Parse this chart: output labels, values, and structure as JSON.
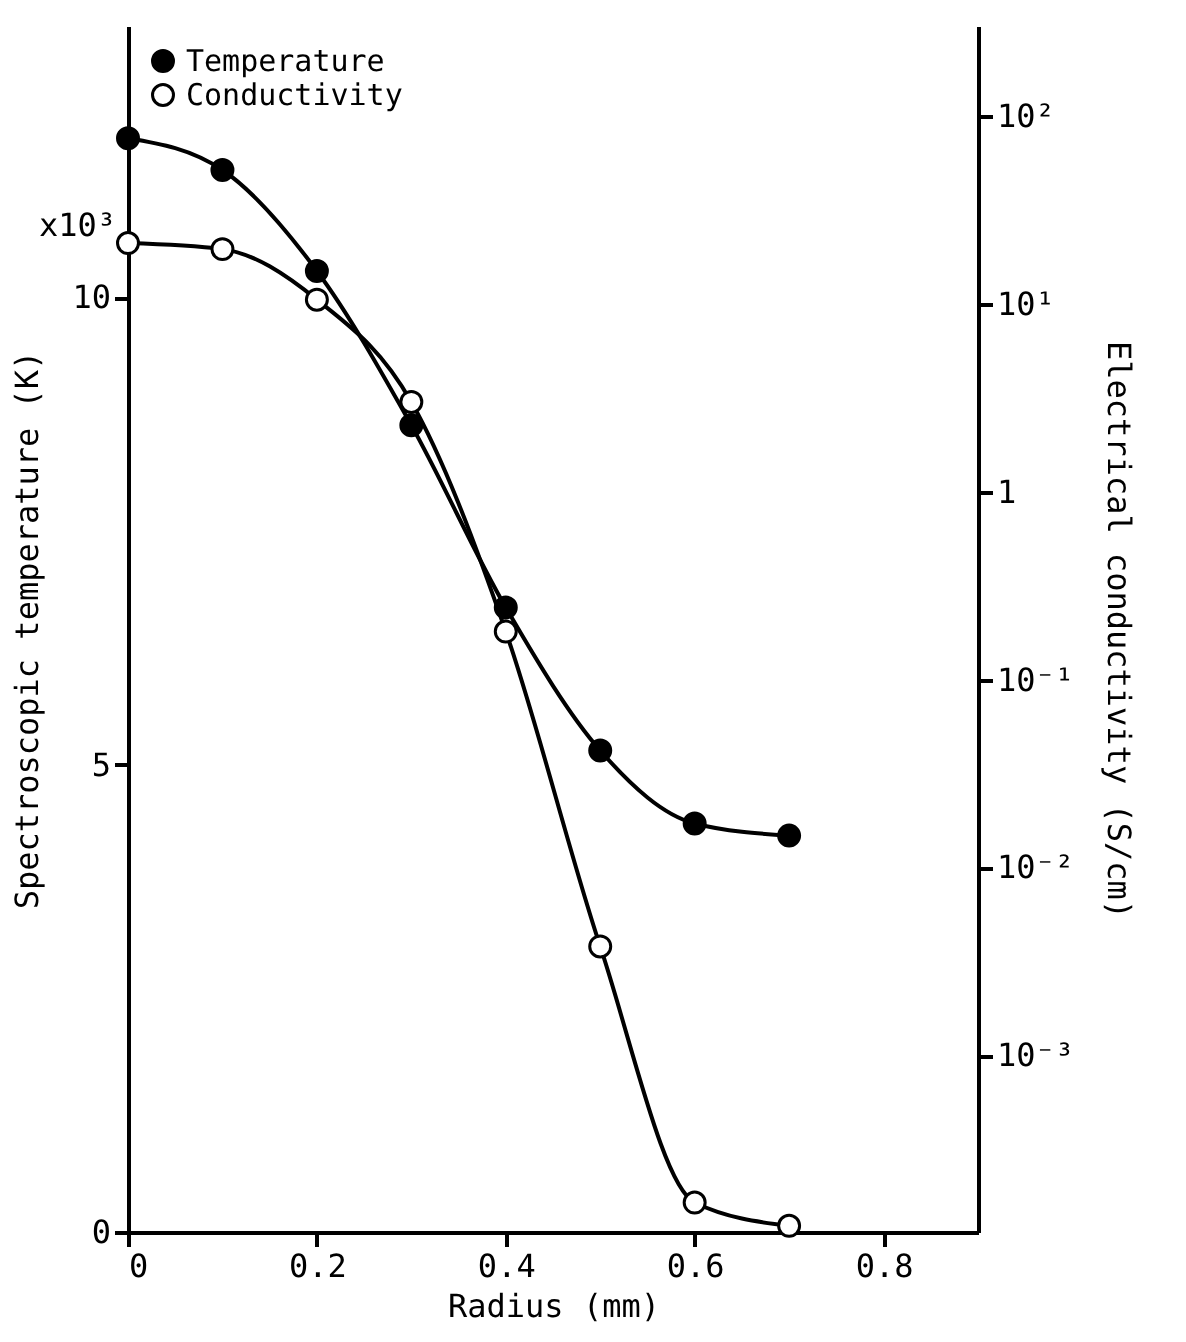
{
  "chart_data": {
    "type": "line",
    "xlabel": "Radius (mm)",
    "ylabel": "Spectroscopic temperature (K)",
    "y2label": "Electrical conductivity (S/cm)",
    "annotations": [
      "x10³"
    ],
    "x": [
      0,
      0.1,
      0.2,
      0.3,
      0.4,
      0.5,
      0.6,
      0.7
    ],
    "series": [
      {
        "name": "Temperature",
        "color": "#000000",
        "values": [
          11.7,
          11.36,
          10.28,
          8.63,
          6.68,
          5.15,
          4.37,
          4.24
        ]
      },
      {
        "name": "Conductivity",
        "color": "#000000",
        "axis": "y2",
        "values": [
          21,
          19.5,
          10.5,
          3.0,
          0.18,
          0.0038,
          0.000165,
          0.000124
        ]
      }
    ],
    "xlim": [
      0,
      0.9
    ],
    "xticks": [
      0,
      0.2,
      0.4,
      0.6,
      0.8
    ],
    "ylim": [
      0,
      12.9
    ],
    "yticks": [
      0,
      5,
      10
    ],
    "y2lim": [
      0.000115,
      300
    ],
    "y2ticks": [
      {
        "value": 100,
        "label": "10²"
      },
      {
        "value": 10,
        "label": "10¹"
      },
      1,
      {
        "value": 0.1,
        "label": "10⁻¹"
      },
      {
        "value": 0.01,
        "label": "10⁻²"
      },
      {
        "value": 0.001,
        "label": "10⁻³"
      }
    ],
    "log": "y2",
    "legend": "top left",
    "marker": "circle",
    "line_style": "solid"
  }
}
